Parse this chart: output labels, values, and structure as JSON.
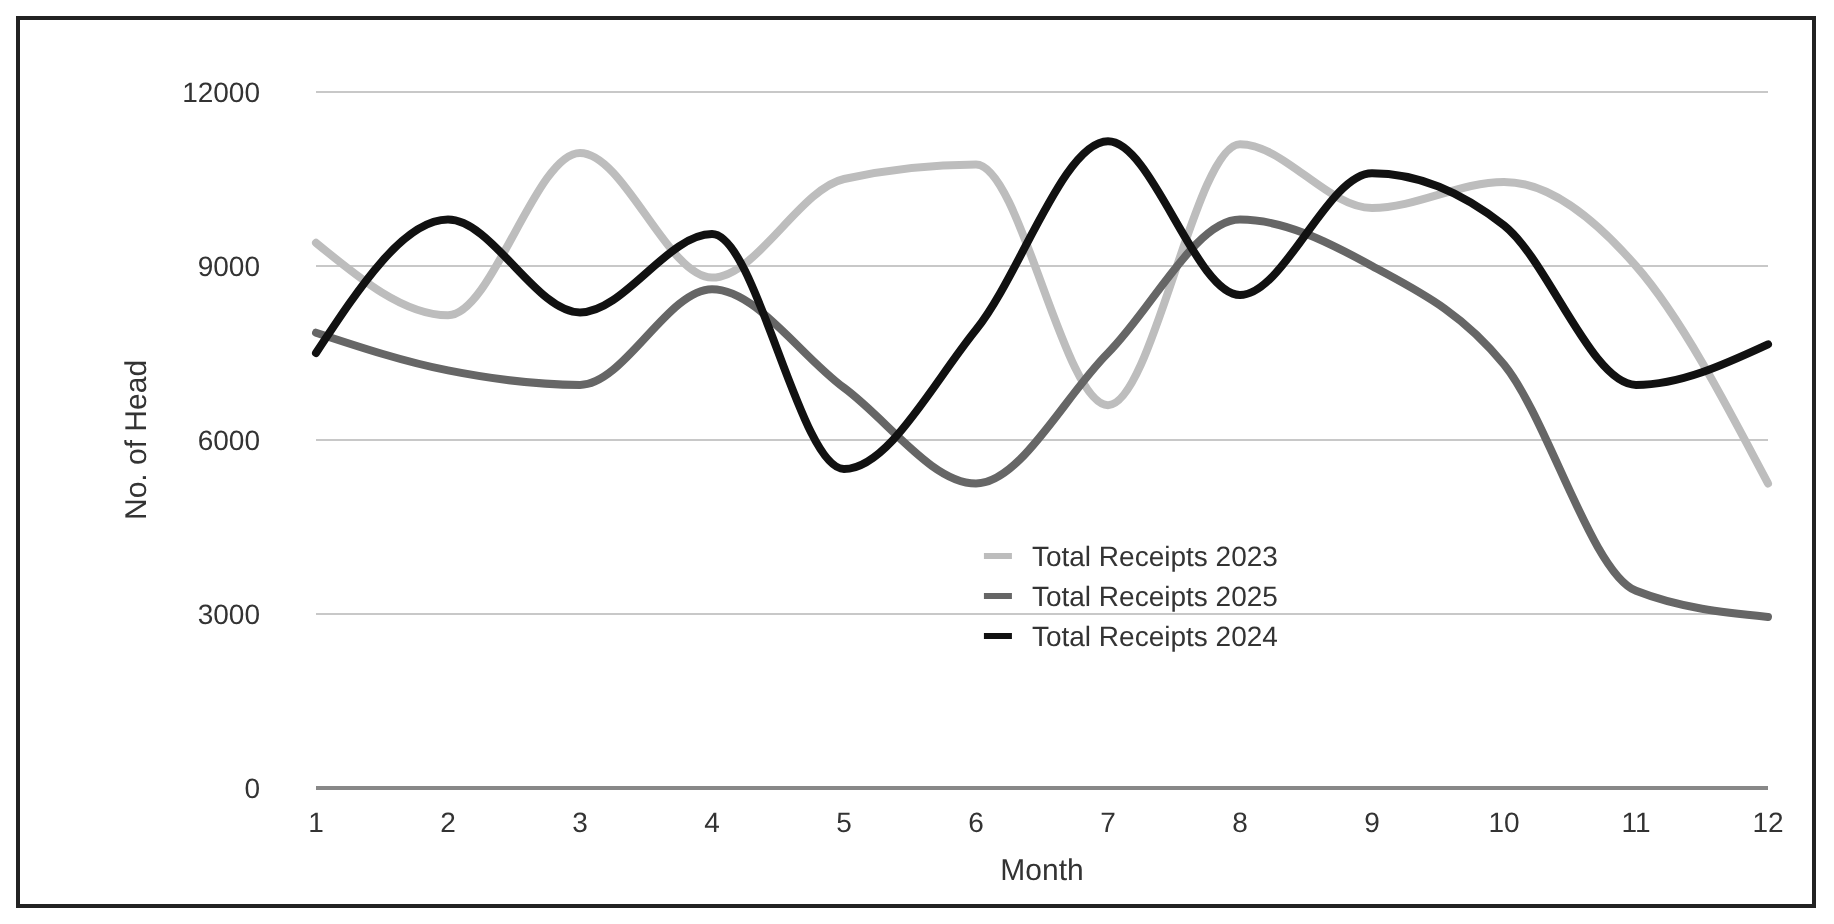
{
  "chart_data": {
    "type": "line",
    "xlabel": "Month",
    "ylabel": "No. of Head",
    "x": [
      1,
      2,
      3,
      4,
      5,
      6,
      7,
      8,
      9,
      10,
      11,
      12
    ],
    "xlim": [
      1,
      12
    ],
    "xticks": [
      1,
      2,
      3,
      4,
      5,
      6,
      7,
      8,
      9,
      10,
      11,
      12
    ],
    "ylim": [
      0,
      12000
    ],
    "yticks": [
      0,
      3000,
      6000,
      9000,
      12000
    ],
    "grid": "y",
    "legend": "bottom",
    "marker": "none",
    "line_style": "solid",
    "series": [
      {
        "name": "Total Receipts 2023",
        "color": "#bdbdbd",
        "values": [
          9400,
          8150,
          10950,
          8800,
          10500,
          10750,
          6600,
          11100,
          10000,
          10450,
          9000,
          5250
        ]
      },
      {
        "name": "Total Receipts 2025",
        "color": "#666666",
        "values": [
          7850,
          7200,
          6950,
          8600,
          6900,
          5250,
          7500,
          9800,
          9000,
          7300,
          3400,
          2950
        ]
      },
      {
        "name": "Total Receipts 2024",
        "color": "#111111",
        "values": [
          7500,
          9800,
          8200,
          9550,
          5500,
          7900,
          11150,
          8500,
          10600,
          9700,
          6950,
          7650
        ]
      }
    ]
  }
}
